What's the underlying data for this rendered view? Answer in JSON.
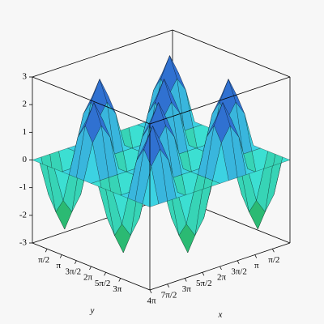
{
  "chart_data": {
    "type": "surface3d",
    "x_label": "x",
    "y_label": "y",
    "x": [
      0,
      0.785,
      1.571,
      2.356,
      3.142,
      3.927,
      4.712,
      5.498,
      6.283,
      7.069,
      7.854,
      8.639,
      9.425,
      10.21,
      10.996,
      11.781,
      12.566
    ],
    "y": [
      0,
      0.785,
      1.571,
      2.356,
      3.142,
      3.927,
      4.712,
      5.498,
      6.283,
      7.069,
      7.854,
      8.639,
      9.425,
      10.21,
      10.996,
      11.781,
      12.566
    ],
    "z": [
      [
        0,
        0,
        0,
        0,
        0,
        0,
        0,
        0,
        0,
        0,
        0,
        0,
        0,
        0,
        0,
        0,
        0
      ],
      [
        0,
        1.25,
        1.77,
        1.25,
        0,
        -1.25,
        -1.77,
        -1.25,
        0,
        1.25,
        1.77,
        1.25,
        0,
        -1.25,
        -1.77,
        -1.25,
        0
      ],
      [
        0,
        1.77,
        2.5,
        1.77,
        0,
        -1.77,
        -2.5,
        -1.77,
        0,
        1.77,
        2.5,
        1.77,
        0,
        -1.77,
        -2.5,
        -1.77,
        0
      ],
      [
        0,
        1.25,
        1.77,
        1.25,
        0,
        -1.25,
        -1.77,
        -1.25,
        0,
        1.25,
        1.77,
        1.25,
        0,
        -1.25,
        -1.77,
        -1.25,
        0
      ],
      [
        0,
        0,
        0,
        0,
        0,
        0,
        0,
        0,
        0,
        0,
        0,
        0,
        0,
        0,
        0,
        0,
        0
      ],
      [
        0,
        -1.25,
        -1.77,
        -1.25,
        0,
        1.25,
        1.77,
        1.25,
        0,
        -1.25,
        -1.77,
        -1.25,
        0,
        1.25,
        1.77,
        1.25,
        0
      ],
      [
        0,
        -1.77,
        -2.5,
        -1.77,
        0,
        1.77,
        2.5,
        1.77,
        0,
        -1.77,
        -2.5,
        -1.77,
        0,
        1.77,
        2.5,
        1.77,
        0
      ],
      [
        0,
        -1.25,
        -1.77,
        -1.25,
        0,
        1.25,
        1.77,
        1.25,
        0,
        -1.25,
        -1.77,
        -1.25,
        0,
        1.25,
        1.77,
        1.25,
        0
      ],
      [
        0,
        0,
        0,
        0,
        0,
        0,
        0,
        0,
        0,
        0,
        0,
        0,
        0,
        0,
        0,
        0,
        0
      ],
      [
        0,
        1.25,
        1.77,
        1.25,
        0,
        -1.25,
        -1.77,
        -1.25,
        0,
        1.25,
        1.77,
        1.25,
        0,
        -1.25,
        -1.77,
        -1.25,
        0
      ],
      [
        0,
        1.77,
        2.5,
        1.77,
        0,
        -1.77,
        -2.5,
        -1.77,
        0,
        1.77,
        2.5,
        1.77,
        0,
        -1.77,
        -2.5,
        -1.77,
        0
      ],
      [
        0,
        1.25,
        1.77,
        1.25,
        0,
        -1.25,
        -1.77,
        -1.25,
        0,
        1.25,
        1.77,
        1.25,
        0,
        -1.25,
        -1.77,
        -1.25,
        0
      ],
      [
        0,
        0,
        0,
        0,
        0,
        0,
        0,
        0,
        0,
        0,
        0,
        0,
        0,
        0,
        0,
        0,
        0
      ],
      [
        0,
        -1.25,
        -1.77,
        -1.25,
        0,
        1.25,
        1.77,
        1.25,
        0,
        -1.25,
        -1.77,
        -1.25,
        0,
        1.25,
        1.77,
        1.25,
        0
      ],
      [
        0,
        -1.77,
        -2.5,
        -1.77,
        0,
        1.77,
        2.5,
        1.77,
        0,
        -1.77,
        -2.5,
        -1.77,
        0,
        1.77,
        2.5,
        1.77,
        0
      ],
      [
        0,
        -1.25,
        -1.77,
        -1.25,
        0,
        1.25,
        1.77,
        1.25,
        0,
        -1.25,
        -1.77,
        -1.25,
        0,
        1.25,
        1.77,
        1.25,
        0
      ],
      [
        0,
        0,
        0,
        0,
        0,
        0,
        0,
        0,
        0,
        0,
        0,
        0,
        0,
        0,
        0,
        0,
        0
      ]
    ],
    "colorscale": [
      "#1e9e28",
      "#3fe6e6",
      "#2626c4"
    ],
    "xlim": [
      0,
      12.566
    ],
    "ylim": [
      0,
      12.566
    ],
    "zlim": [
      -3,
      3
    ],
    "zticks": [
      -3,
      -2,
      -1,
      0,
      1,
      2,
      3
    ],
    "xticks": [
      {
        "value": 1.571,
        "label": "π/2"
      },
      {
        "value": 3.142,
        "label": "π"
      },
      {
        "value": 4.712,
        "label": "3π/2"
      },
      {
        "value": 6.283,
        "label": "2π"
      },
      {
        "value": 7.854,
        "label": "5π/2"
      },
      {
        "value": 9.425,
        "label": "3π"
      },
      {
        "value": 10.996,
        "label": "7π/2"
      },
      {
        "value": 12.566,
        "label": "4π"
      }
    ],
    "yticks": [
      {
        "value": 1.571,
        "label": "π/2"
      },
      {
        "value": 3.142,
        "label": "π"
      },
      {
        "value": 4.712,
        "label": "3π/2"
      },
      {
        "value": 6.283,
        "label": "2π"
      },
      {
        "value": 7.854,
        "label": "5π/2"
      },
      {
        "value": 9.425,
        "label": "3π"
      }
    ]
  }
}
